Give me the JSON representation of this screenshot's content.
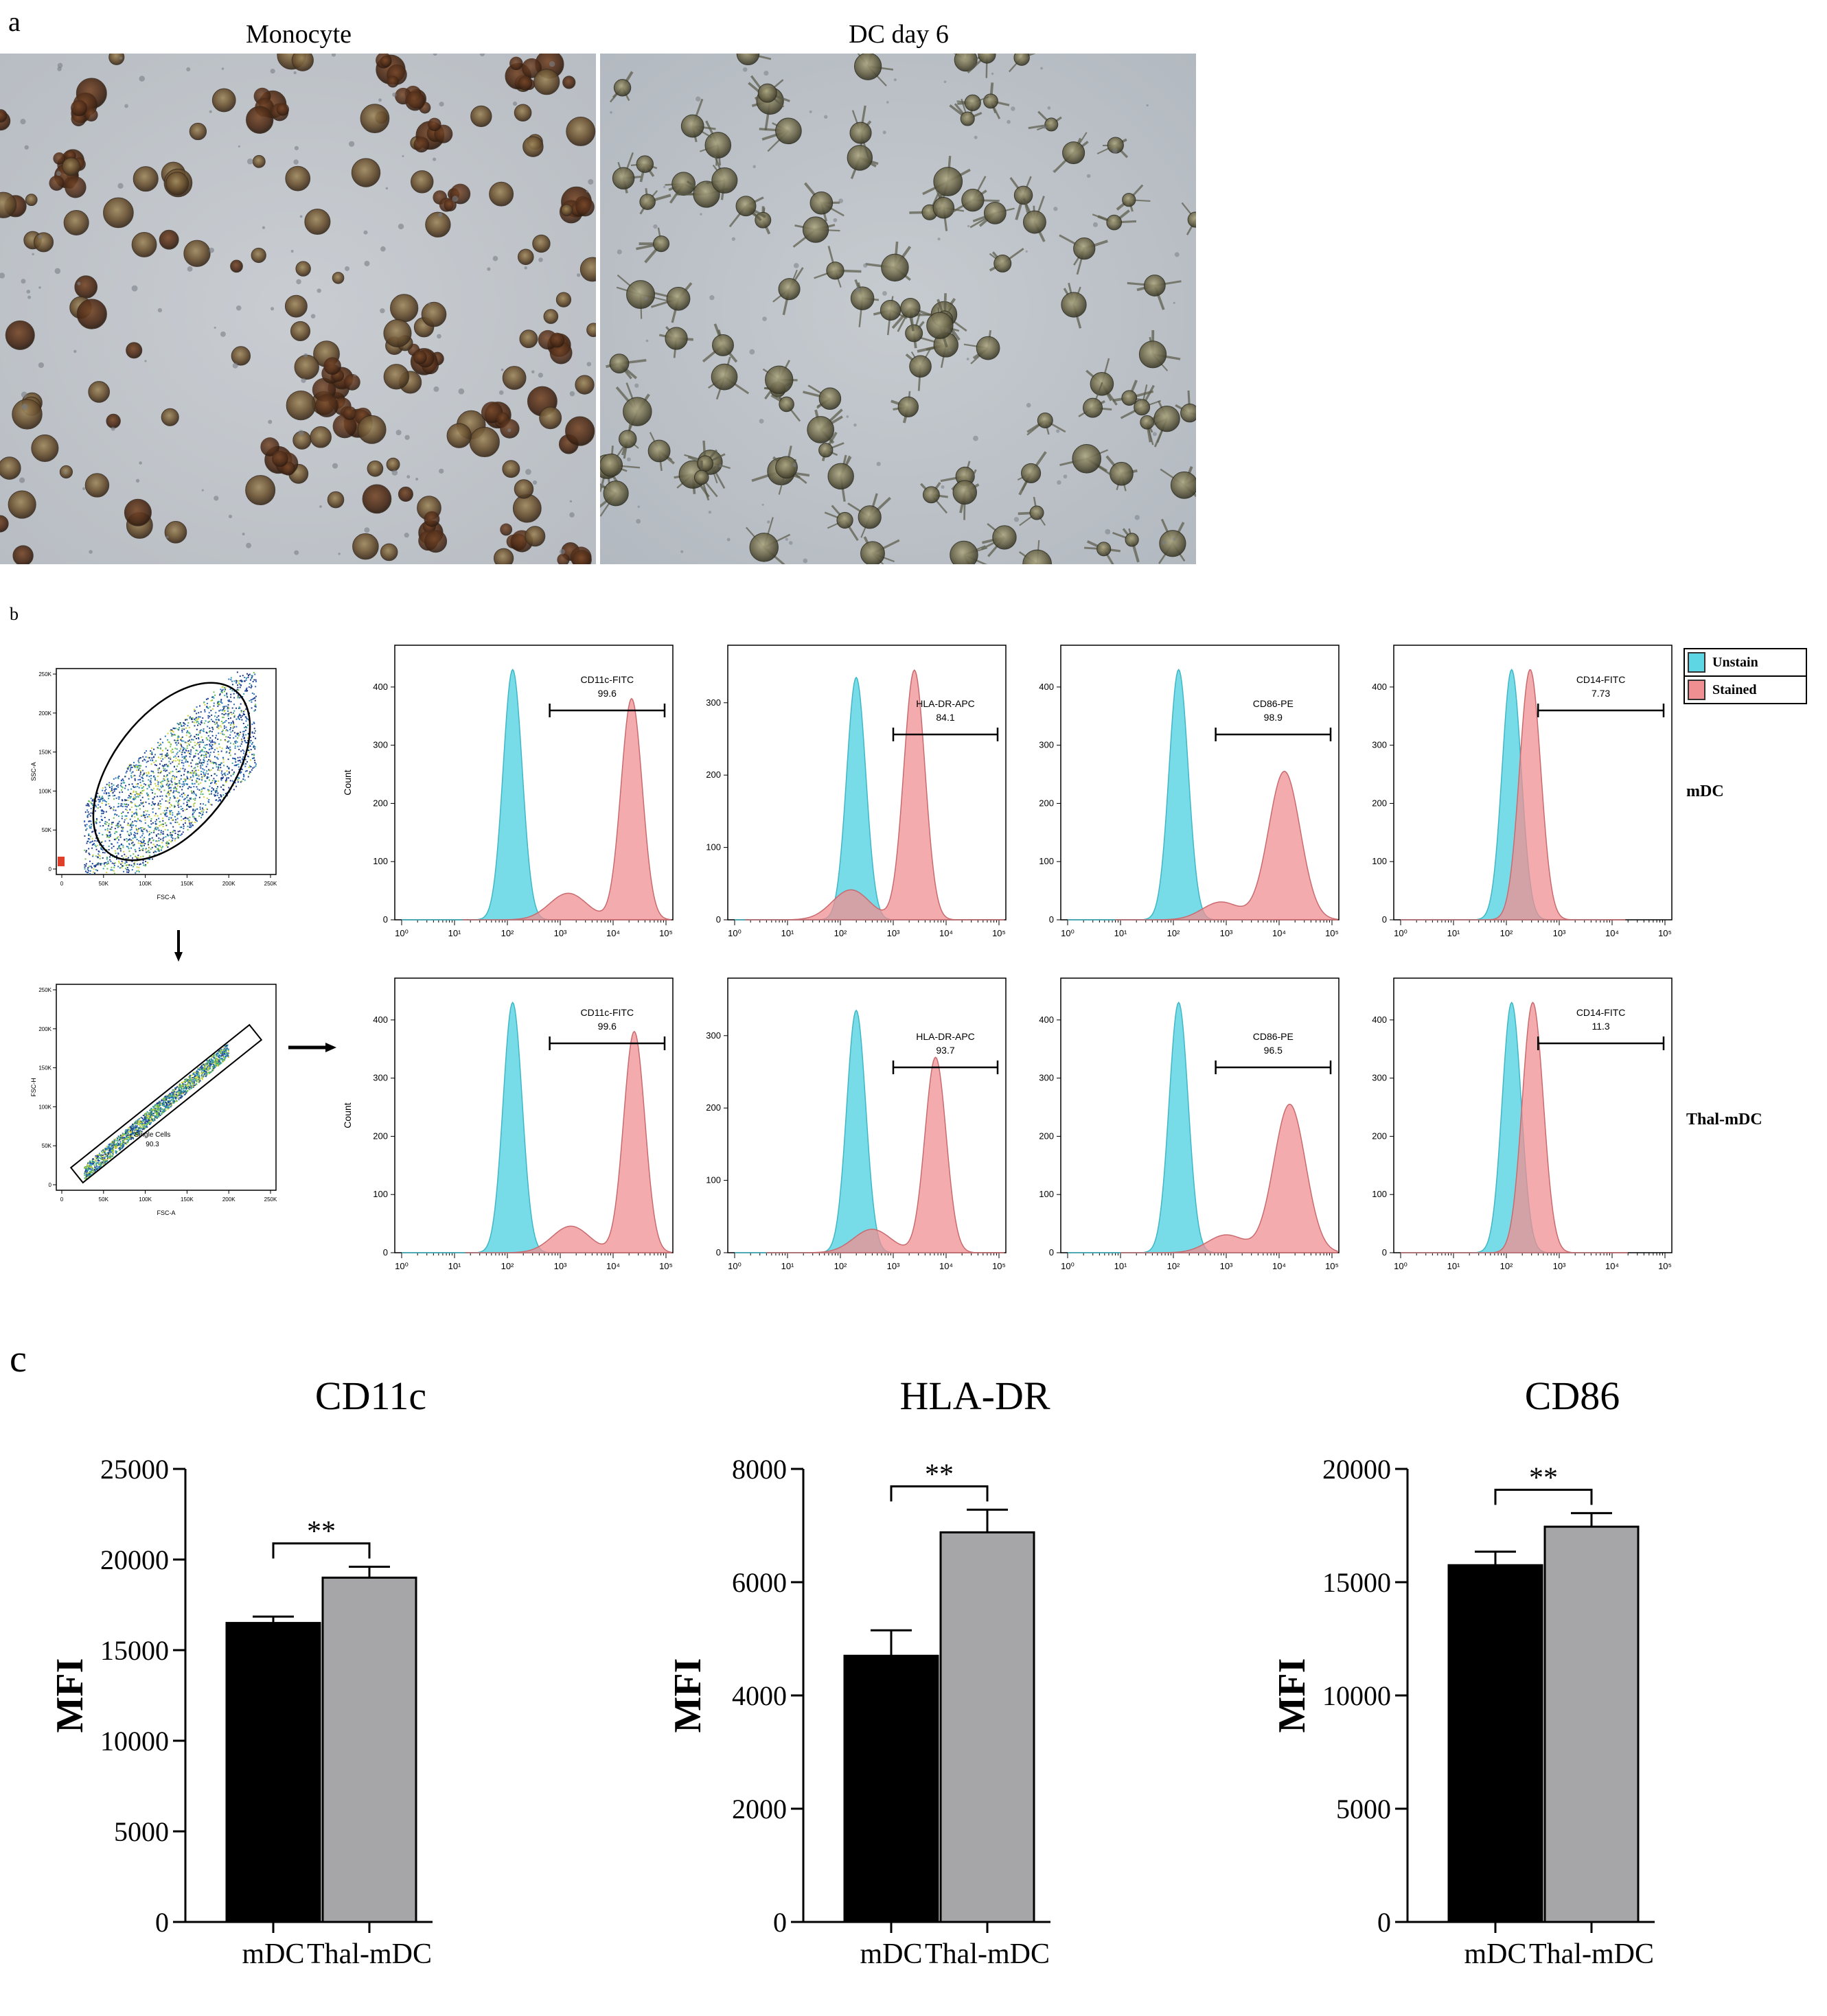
{
  "panel_a": {
    "label": "a",
    "images": [
      {
        "title": "Monocyte"
      },
      {
        "title": "DC day 6"
      }
    ]
  },
  "panel_b": {
    "label": "b",
    "gating": {
      "top": {
        "x_label": "FSC-A",
        "y_label": "SSC-A",
        "x_ticks": [
          "0",
          "50K",
          "100K",
          "150K",
          "200K",
          "250K"
        ],
        "y_ticks": [
          "0",
          "50K",
          "100K",
          "150K",
          "200K",
          "250K"
        ]
      },
      "bottom": {
        "x_label": "FSC-A",
        "y_label": "FSC-H",
        "x_ticks": [
          "0",
          "50K",
          "100K",
          "150K",
          "200K",
          "250K"
        ],
        "y_ticks": [
          "0",
          "50K",
          "100K",
          "150K",
          "200K",
          "250K"
        ],
        "gate_name": "Single Cells",
        "gate_value": "90.3"
      }
    },
    "y_axis_label": "Count",
    "x_ticks": [
      "10⁰",
      "10¹",
      "10²",
      "10³",
      "10⁴",
      "10⁵"
    ],
    "legend": [
      {
        "label": "Unstain",
        "color": "#5fd6e4"
      },
      {
        "label": "Stained",
        "color": "#f08f92"
      }
    ],
    "row_labels": [
      "mDC",
      "Thal-mDC"
    ],
    "histograms": [
      [
        {
          "marker": "CD11c-FITC",
          "percent": "99.6",
          "y_ticks": [
            0,
            100,
            200,
            300,
            400
          ],
          "ymax": 460,
          "unstain_peak": 2.1,
          "stained_peak": 4.35
        },
        {
          "marker": "HLA-DR-APC",
          "percent": "84.1",
          "y_ticks": [
            0,
            100,
            200,
            300
          ],
          "ymax": 370,
          "unstain_peak": 2.3,
          "stained_peak": 3.4
        },
        {
          "marker": "CD86-PE",
          "percent": "98.9",
          "y_ticks": [
            0,
            100,
            200,
            300,
            400
          ],
          "ymax": 460,
          "unstain_peak": 2.1,
          "stained_peak": 4.1
        },
        {
          "marker": "CD14-FITC",
          "percent": "7.73",
          "y_ticks": [
            0,
            100,
            200,
            300,
            400
          ],
          "ymax": 460,
          "unstain_peak": 2.1,
          "stained_peak": 2.45
        }
      ],
      [
        {
          "marker": "CD11c-FITC",
          "percent": "99.6",
          "y_ticks": [
            0,
            100,
            200,
            300,
            400
          ],
          "ymax": 460,
          "unstain_peak": 2.1,
          "stained_peak": 4.4
        },
        {
          "marker": "HLA-DR-APC",
          "percent": "93.7",
          "y_ticks": [
            0,
            100,
            200,
            300
          ],
          "ymax": 370,
          "unstain_peak": 2.3,
          "stained_peak": 3.8
        },
        {
          "marker": "CD86-PE",
          "percent": "96.5",
          "y_ticks": [
            0,
            100,
            200,
            300,
            400
          ],
          "ymax": 460,
          "unstain_peak": 2.1,
          "stained_peak": 4.2
        },
        {
          "marker": "CD14-FITC",
          "percent": "11.3",
          "y_ticks": [
            0,
            100,
            200,
            300,
            400
          ],
          "ymax": 460,
          "unstain_peak": 2.1,
          "stained_peak": 2.5
        }
      ]
    ]
  },
  "panel_c": {
    "label": "c"
  },
  "chart_data": [
    {
      "type": "bar",
      "title": "CD11c",
      "ylabel": "MFI",
      "xlabel": "",
      "categories": [
        "mDC",
        "Thal-mDC"
      ],
      "values": [
        16500,
        19000
      ],
      "errors": [
        350,
        600
      ],
      "colors": [
        "#000000",
        "#a6a6a8"
      ],
      "ylim": [
        0,
        25000
      ],
      "yticks": [
        0,
        5000,
        10000,
        15000,
        20000,
        25000
      ],
      "significance": "**"
    },
    {
      "type": "bar",
      "title": "HLA-DR",
      "ylabel": "MFI",
      "xlabel": "",
      "categories": [
        "mDC",
        "Thal-mDC"
      ],
      "values": [
        4700,
        6880
      ],
      "errors": [
        450,
        400
      ],
      "colors": [
        "#000000",
        "#a6a6a8"
      ],
      "ylim": [
        0,
        8000
      ],
      "yticks": [
        0,
        2000,
        4000,
        6000,
        8000
      ],
      "significance": "**"
    },
    {
      "type": "bar",
      "title": "CD86",
      "ylabel": "MFI",
      "xlabel": "",
      "categories": [
        "mDC",
        "Thal-mDC"
      ],
      "values": [
        15750,
        17450
      ],
      "errors": [
        600,
        600
      ],
      "colors": [
        "#000000",
        "#a6a6a8"
      ],
      "ylim": [
        0,
        20000
      ],
      "yticks": [
        0,
        5000,
        10000,
        15000,
        20000
      ],
      "significance": "**"
    }
  ]
}
